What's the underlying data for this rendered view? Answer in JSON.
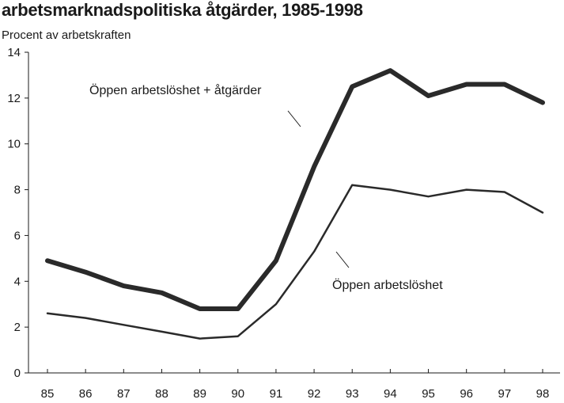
{
  "header": {
    "title": "arbetsmarknadspolitiska åtgärder, 1985-1998",
    "subtitle": "Procent av arbetskraften"
  },
  "chart_data": {
    "type": "line",
    "title": "arbetsmarknadspolitiska åtgärder, 1985-1998",
    "ylabel": "Procent av arbetskraften",
    "xlabel": "",
    "categories": [
      "85",
      "86",
      "87",
      "88",
      "89",
      "90",
      "91",
      "92",
      "93",
      "94",
      "95",
      "96",
      "97",
      "98"
    ],
    "ylim": [
      0,
      14
    ],
    "yticks": [
      0,
      2,
      4,
      6,
      8,
      10,
      12,
      14
    ],
    "grid": false,
    "series": [
      {
        "name": "Öppen arbetslöshet + åtgärder",
        "values": [
          4.9,
          4.4,
          3.8,
          3.5,
          2.8,
          2.8,
          4.9,
          9.0,
          12.5,
          13.2,
          12.1,
          12.6,
          12.6,
          11.8
        ],
        "color": "#2a2a2a"
      },
      {
        "name": "Öppen arbetslöshet",
        "values": [
          2.6,
          2.4,
          2.1,
          1.8,
          1.5,
          1.6,
          3.0,
          5.3,
          8.2,
          8.0,
          7.7,
          8.0,
          7.9,
          7.0
        ],
        "color": "#2a2a2a"
      }
    ]
  }
}
